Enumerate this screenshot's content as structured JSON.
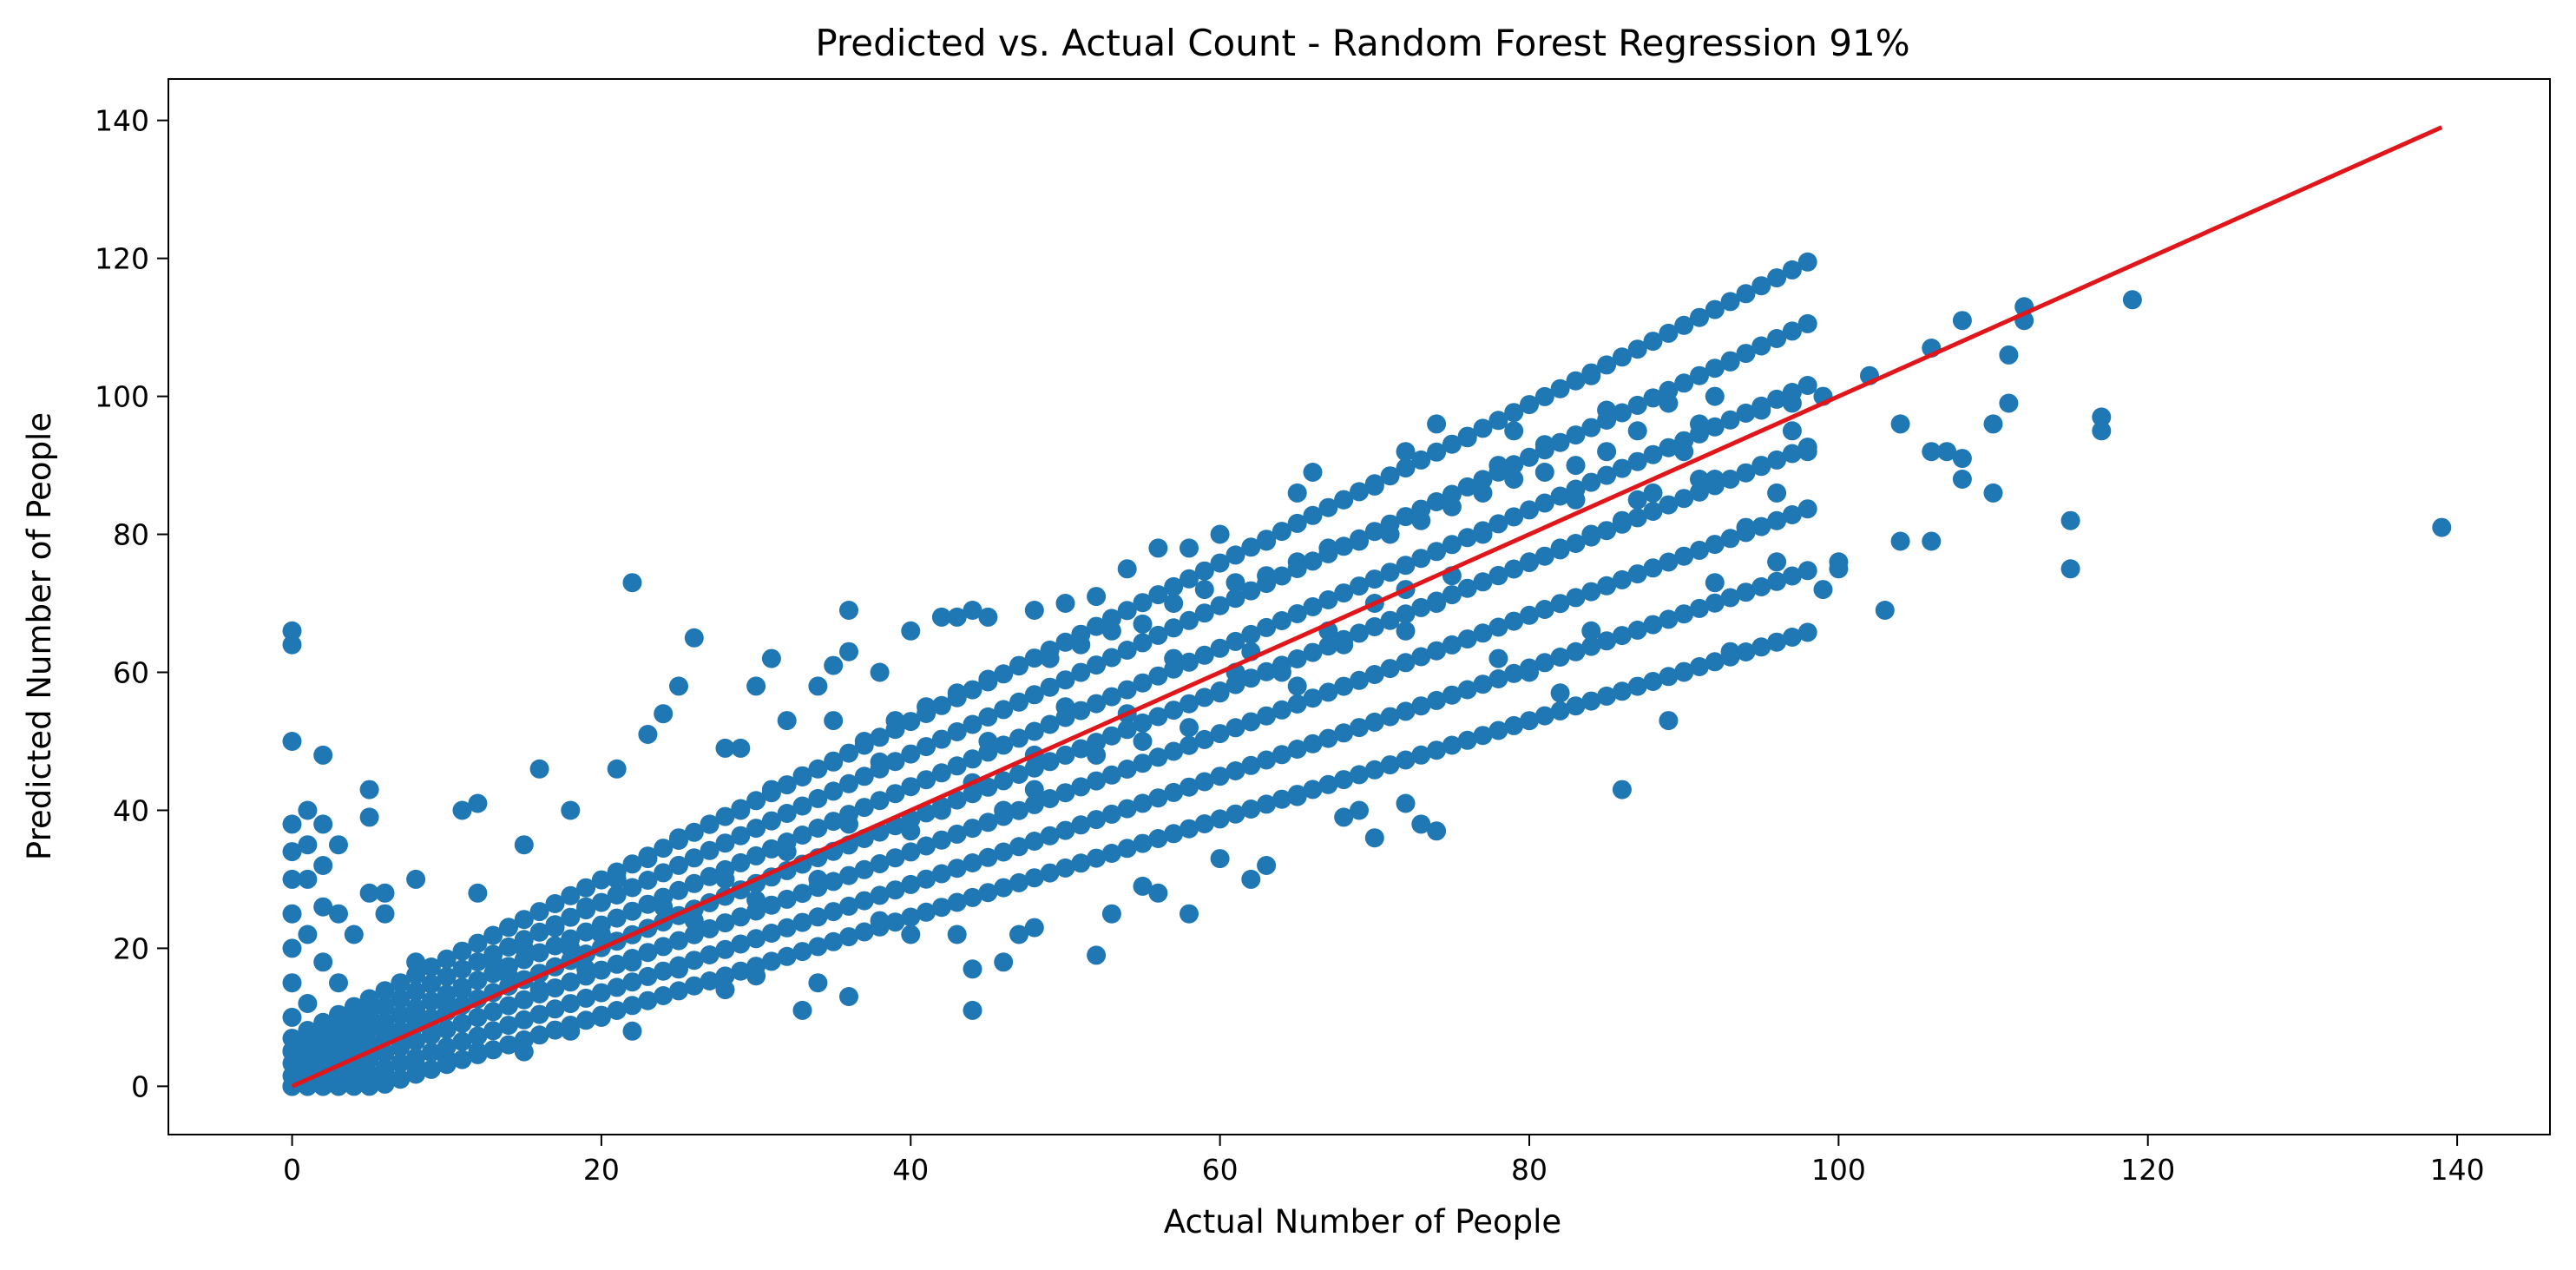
{
  "chart_data": {
    "type": "scatter",
    "title": "Predicted vs. Actual Count - Random Forest Regression 91%",
    "xlabel": "Actual Number of People",
    "ylabel": "Predicted Number of People",
    "xlim": [
      -8,
      146
    ],
    "ylim": [
      -7,
      146
    ],
    "xticks": [
      0,
      20,
      40,
      60,
      80,
      100,
      120,
      140
    ],
    "yticks": [
      0,
      20,
      40,
      60,
      80,
      100,
      120,
      140
    ],
    "grid": false,
    "legend": "none",
    "colors": {
      "points": "#1f77b4",
      "line": "#e0161b"
    },
    "series": [
      {
        "kind": "scatter",
        "points": [
          [
            0,
            66
          ],
          [
            0,
            64
          ],
          [
            0,
            50
          ],
          [
            0,
            38
          ],
          [
            0,
            34
          ],
          [
            0,
            30
          ],
          [
            0,
            25
          ],
          [
            0,
            20
          ],
          [
            0,
            15
          ],
          [
            0,
            10
          ],
          [
            0,
            5
          ],
          [
            0,
            0
          ],
          [
            1,
            40
          ],
          [
            1,
            35
          ],
          [
            1,
            30
          ],
          [
            1,
            22
          ],
          [
            1,
            12
          ],
          [
            1,
            3
          ],
          [
            2,
            48
          ],
          [
            2,
            38
          ],
          [
            2,
            32
          ],
          [
            2,
            26
          ],
          [
            2,
            18
          ],
          [
            2,
            8
          ],
          [
            3,
            35
          ],
          [
            3,
            25
          ],
          [
            3,
            15
          ],
          [
            4,
            22
          ],
          [
            4,
            10
          ],
          [
            5,
            43
          ],
          [
            5,
            39
          ],
          [
            5,
            28
          ],
          [
            6,
            25
          ],
          [
            6,
            28
          ],
          [
            8,
            30
          ],
          [
            8,
            18
          ],
          [
            11,
            40
          ],
          [
            12,
            41
          ],
          [
            12,
            28
          ],
          [
            15,
            35
          ],
          [
            16,
            46
          ],
          [
            18,
            40
          ],
          [
            21,
            46
          ],
          [
            22,
            73
          ],
          [
            23,
            51
          ],
          [
            24,
            54
          ],
          [
            25,
            58
          ],
          [
            26,
            65
          ],
          [
            28,
            49
          ],
          [
            29,
            49
          ],
          [
            30,
            58
          ],
          [
            31,
            62
          ],
          [
            32,
            53
          ],
          [
            34,
            58
          ],
          [
            35,
            61
          ],
          [
            36,
            69
          ],
          [
            36,
            63
          ],
          [
            38,
            60
          ],
          [
            40,
            66
          ],
          [
            42,
            68
          ],
          [
            43,
            68
          ],
          [
            44,
            69
          ],
          [
            45,
            68
          ],
          [
            48,
            69
          ],
          [
            50,
            70
          ],
          [
            52,
            71
          ],
          [
            54,
            75
          ],
          [
            56,
            78
          ],
          [
            58,
            78
          ],
          [
            60,
            80
          ],
          [
            63,
            79
          ],
          [
            65,
            86
          ],
          [
            66,
            89
          ],
          [
            68,
            85
          ],
          [
            70,
            87
          ],
          [
            72,
            92
          ],
          [
            74,
            96
          ],
          [
            76,
            94
          ],
          [
            78,
            90
          ],
          [
            79,
            95
          ],
          [
            81,
            93
          ],
          [
            84,
            103
          ],
          [
            85,
            98
          ],
          [
            87,
            95
          ],
          [
            89,
            99
          ],
          [
            91,
            96
          ],
          [
            92,
            100
          ],
          [
            93,
            105
          ],
          [
            95,
            98
          ],
          [
            97,
            99
          ],
          [
            99,
            100
          ],
          [
            102,
            103
          ],
          [
            104,
            96
          ],
          [
            106,
            107
          ],
          [
            108,
            111
          ],
          [
            111,
            106
          ],
          [
            112,
            113
          ],
          [
            112,
            111
          ],
          [
            119,
            114
          ],
          [
            110,
            96
          ],
          [
            111,
            99
          ],
          [
            107,
            92
          ],
          [
            106,
            92
          ],
          [
            108,
            91
          ],
          [
            108,
            88
          ],
          [
            110,
            86
          ],
          [
            104,
            79
          ],
          [
            106,
            79
          ],
          [
            103,
            69
          ],
          [
            100,
            76
          ],
          [
            99,
            72
          ],
          [
            100,
            75
          ],
          [
            117,
            97
          ],
          [
            117,
            95
          ],
          [
            115,
            82
          ],
          [
            115,
            75
          ],
          [
            139,
            81
          ],
          [
            86,
            43
          ],
          [
            89,
            53
          ],
          [
            90,
            60
          ],
          [
            93,
            63
          ],
          [
            92,
            73
          ],
          [
            96,
            76
          ],
          [
            94,
            81
          ],
          [
            84,
            66
          ],
          [
            82,
            57
          ],
          [
            80,
            60
          ],
          [
            78,
            62
          ],
          [
            74,
            37
          ],
          [
            73,
            38
          ],
          [
            72,
            41
          ],
          [
            70,
            36
          ],
          [
            69,
            40
          ],
          [
            68,
            39
          ],
          [
            65,
            42
          ],
          [
            63,
            32
          ],
          [
            62,
            30
          ],
          [
            60,
            33
          ],
          [
            58,
            25
          ],
          [
            56,
            28
          ],
          [
            55,
            29
          ],
          [
            53,
            25
          ],
          [
            52,
            19
          ],
          [
            48,
            23
          ],
          [
            47,
            22
          ],
          [
            46,
            18
          ],
          [
            44,
            11
          ],
          [
            44,
            17
          ],
          [
            43,
            22
          ],
          [
            38,
            24
          ],
          [
            40,
            22
          ],
          [
            36,
            13
          ],
          [
            33,
            11
          ],
          [
            34,
            15
          ],
          [
            30,
            16
          ],
          [
            28,
            14
          ],
          [
            25,
            17
          ],
          [
            22,
            8
          ],
          [
            20,
            10
          ],
          [
            18,
            8
          ],
          [
            15,
            5
          ],
          [
            12,
            5
          ],
          [
            10,
            4
          ],
          [
            8,
            3
          ],
          [
            6,
            2
          ],
          [
            4,
            1
          ],
          [
            3,
            0
          ],
          [
            2,
            0
          ],
          [
            1,
            0
          ],
          [
            35,
            53
          ],
          [
            38,
            47
          ],
          [
            42,
            40
          ],
          [
            45,
            50
          ],
          [
            48,
            43
          ],
          [
            50,
            55
          ],
          [
            55,
            50
          ],
          [
            57,
            62
          ],
          [
            60,
            57
          ],
          [
            62,
            63
          ],
          [
            64,
            60
          ],
          [
            67,
            66
          ],
          [
            70,
            70
          ],
          [
            72,
            66
          ],
          [
            75,
            74
          ],
          [
            77,
            80
          ],
          [
            80,
            76
          ],
          [
            83,
            85
          ],
          [
            86,
            82
          ],
          [
            88,
            86
          ],
          [
            90,
            92
          ],
          [
            92,
            88
          ],
          [
            95,
            90
          ],
          [
            97,
            95
          ],
          [
            98,
            92
          ],
          [
            96,
            86
          ],
          [
            20,
            22
          ],
          [
            22,
            18
          ],
          [
            24,
            26
          ],
          [
            26,
            24
          ],
          [
            28,
            30
          ],
          [
            30,
            27
          ],
          [
            32,
            34
          ],
          [
            34,
            30
          ],
          [
            36,
            38
          ],
          [
            40,
            37
          ],
          [
            44,
            44
          ],
          [
            46,
            40
          ],
          [
            48,
            48
          ],
          [
            52,
            48
          ],
          [
            54,
            54
          ],
          [
            58,
            52
          ],
          [
            61,
            60
          ],
          [
            65,
            58
          ],
          [
            68,
            64
          ],
          [
            72,
            72
          ],
          [
            74,
            70
          ],
          [
            78,
            74
          ],
          [
            82,
            78
          ],
          [
            84,
            80
          ],
          [
            87,
            85
          ],
          [
            91,
            88
          ],
          [
            10,
            12
          ],
          [
            12,
            10
          ],
          [
            14,
            16
          ],
          [
            16,
            14
          ],
          [
            18,
            20
          ],
          [
            19,
            17
          ],
          [
            9,
            8
          ],
          [
            7,
            7
          ],
          [
            5,
            6
          ],
          [
            4,
            4
          ],
          [
            3,
            5
          ],
          [
            2,
            3
          ],
          [
            1,
            2
          ],
          [
            6,
            9
          ],
          [
            8,
            11
          ],
          [
            11,
            14
          ],
          [
            13,
            18
          ],
          [
            15,
            20
          ],
          [
            17,
            23
          ],
          [
            19,
            26
          ],
          [
            21,
            30
          ],
          [
            23,
            33
          ],
          [
            25,
            36
          ],
          [
            27,
            38
          ],
          [
            29,
            40
          ],
          [
            31,
            43
          ],
          [
            33,
            45
          ],
          [
            35,
            47
          ],
          [
            37,
            50
          ],
          [
            39,
            53
          ],
          [
            41,
            55
          ],
          [
            43,
            57
          ],
          [
            45,
            59
          ],
          [
            47,
            61
          ],
          [
            49,
            62
          ],
          [
            51,
            64
          ],
          [
            53,
            66
          ],
          [
            55,
            67
          ],
          [
            57,
            70
          ],
          [
            59,
            72
          ],
          [
            61,
            73
          ],
          [
            63,
            74
          ],
          [
            65,
            76
          ],
          [
            67,
            78
          ],
          [
            69,
            79
          ],
          [
            71,
            80
          ],
          [
            73,
            82
          ],
          [
            75,
            84
          ],
          [
            77,
            86
          ],
          [
            79,
            88
          ],
          [
            81,
            89
          ],
          [
            83,
            90
          ],
          [
            85,
            92
          ]
        ]
      },
      {
        "kind": "line",
        "points": [
          [
            0,
            0
          ],
          [
            139,
            139
          ]
        ]
      }
    ]
  }
}
